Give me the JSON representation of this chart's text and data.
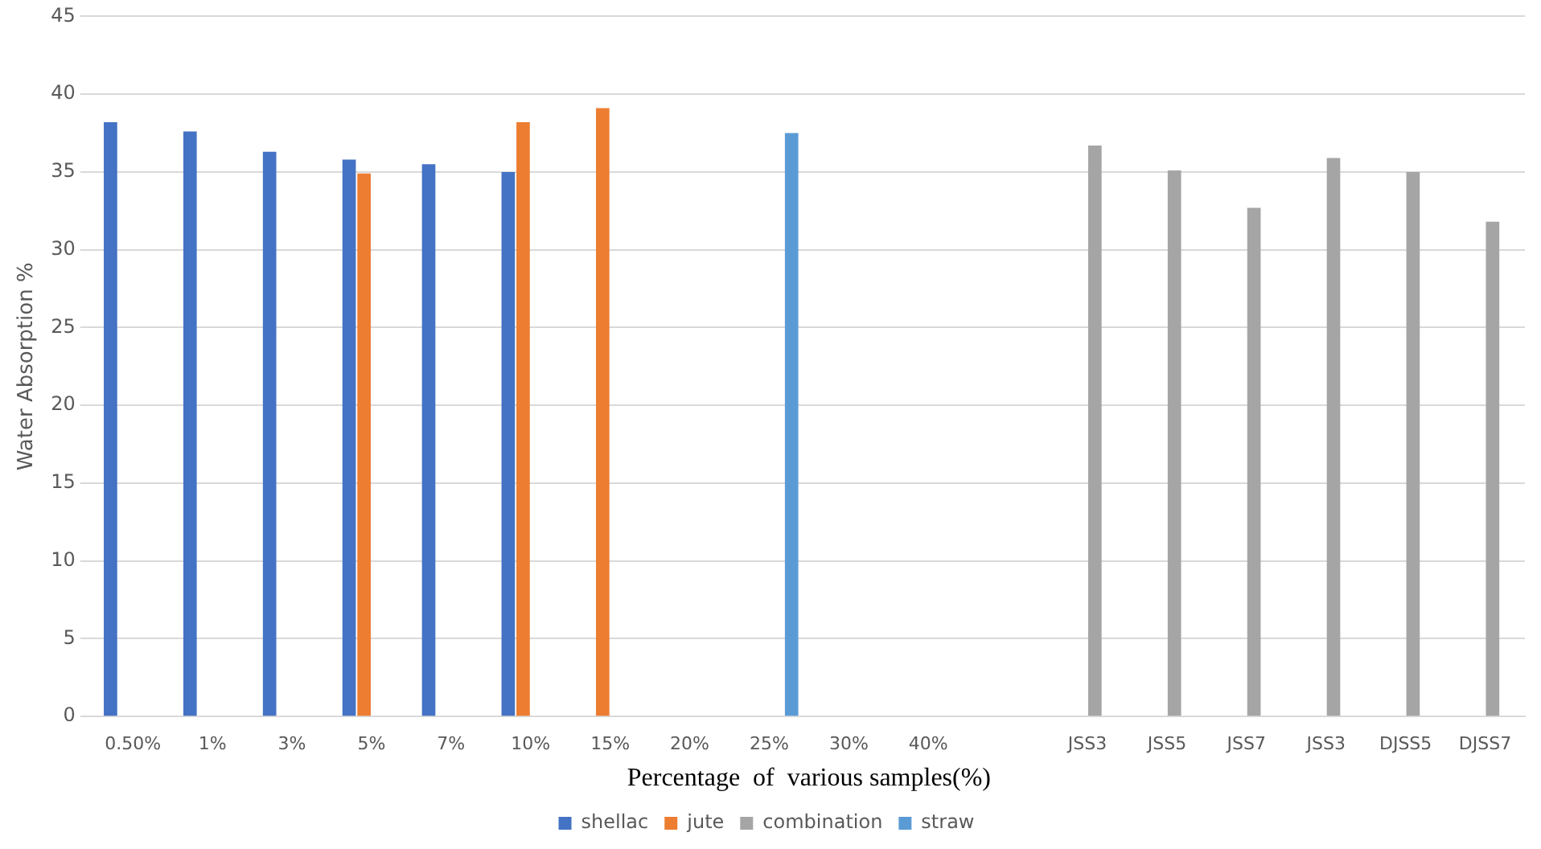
{
  "chart_data": {
    "type": "bar",
    "xlabel": "Percentage  of  various samples(%)",
    "ylabel": "Water Absorption %",
    "categories": [
      "0.50%",
      "1%",
      "3%",
      "5%",
      "7%",
      "10%",
      "15%",
      "20%",
      "25%",
      "30%",
      "40%",
      null,
      "JSS3",
      "JSS5",
      "JSS7",
      "JSS3",
      "DJSS5",
      "DJSS7"
    ],
    "series": [
      {
        "name": "shellac",
        "color": "#4472c4",
        "values": [
          38.2,
          37.6,
          36.3,
          35.8,
          35.5,
          35.0,
          null,
          null,
          null,
          null,
          null,
          null,
          null,
          null,
          null,
          null,
          null,
          null
        ]
      },
      {
        "name": "jute",
        "color": "#ed7d31",
        "values": [
          null,
          null,
          null,
          34.9,
          null,
          38.2,
          39.1,
          null,
          null,
          null,
          null,
          null,
          null,
          null,
          null,
          null,
          null,
          null
        ]
      },
      {
        "name": "combination",
        "color": "#a5a5a5",
        "values": [
          null,
          null,
          null,
          null,
          null,
          null,
          null,
          null,
          null,
          null,
          null,
          null,
          36.7,
          35.1,
          32.7,
          35.9,
          35.0,
          31.8
        ]
      },
      {
        "name": "straw",
        "color": "#5b9bd5",
        "values": [
          null,
          null,
          null,
          null,
          null,
          null,
          null,
          null,
          37.5,
          null,
          null,
          null,
          null,
          null,
          null,
          null,
          null,
          null
        ]
      }
    ],
    "ylim": [
      0,
      45
    ],
    "yticks": [
      0,
      5,
      10,
      15,
      20,
      25,
      30,
      35,
      40,
      45
    ],
    "grid": "y",
    "legend": "bottom"
  }
}
